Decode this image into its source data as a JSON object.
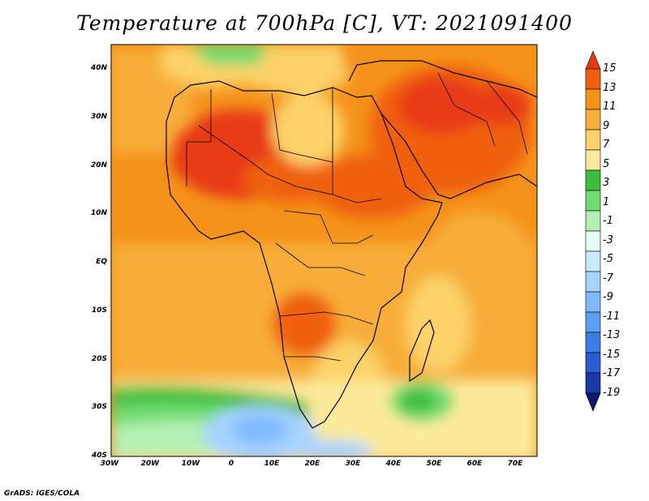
{
  "title": "Temperature at 700hPa [C], VT: 2021091400",
  "credit": "GrADS: IGES/COLA",
  "lat_ticks": [
    "40N",
    "30N",
    "20N",
    "10N",
    "EQ",
    "10S",
    "20S",
    "30S",
    "40S"
  ],
  "lon_ticks": [
    "30W",
    "20W",
    "10W",
    "0",
    "10E",
    "20E",
    "30E",
    "40E",
    "50E",
    "60E",
    "70E"
  ],
  "colorbar": {
    "labels": [
      "15",
      "13",
      "11",
      "9",
      "7",
      "5",
      "3",
      "1",
      "-1",
      "-3",
      "-5",
      "-7",
      "-9",
      "-11",
      "-13",
      "-15",
      "-17",
      "-19"
    ],
    "colors": [
      "#e83a12",
      "#f06010",
      "#f5921a",
      "#f7ad38",
      "#fcd268",
      "#fcea9a",
      "#3cbd3c",
      "#6fdc6f",
      "#b4f0b4",
      "#e6fff6",
      "#c9ebff",
      "#a7d3ff",
      "#7fbaff",
      "#5c9ef5",
      "#3c7ee8",
      "#2a5cd2",
      "#1a3aa8",
      "#0c1a6e"
    ]
  }
}
